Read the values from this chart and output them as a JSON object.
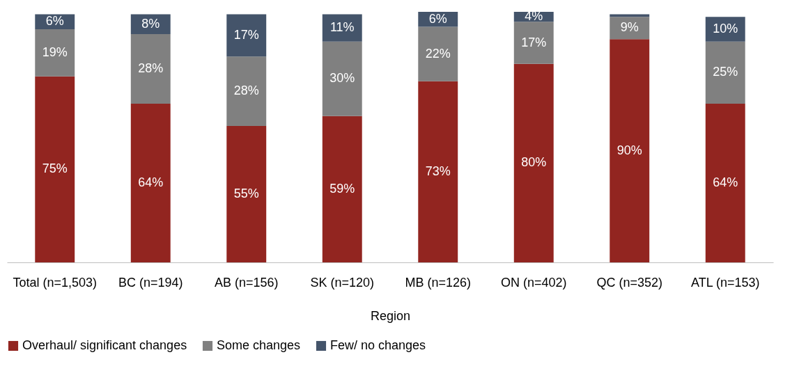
{
  "chart_data": {
    "type": "bar",
    "stacked": true,
    "xlabel": "Region",
    "categories": [
      "Total (n=1,503)",
      "BC (n=194)",
      "AB (n=156)",
      "SK (n=120)",
      "MB (n=126)",
      "ON (n=402)",
      "QC (n=352)",
      "ATL (n=153)"
    ],
    "series": [
      {
        "name": "Overhaul/ significant changes",
        "color": "#922520",
        "values": [
          75,
          64,
          55,
          59,
          73,
          80,
          90,
          64
        ],
        "value_labels": [
          "75%",
          "64%",
          "55%",
          "59%",
          "73%",
          "80%",
          "90%",
          "64%"
        ]
      },
      {
        "name": "Some changes",
        "color": "#808080",
        "values": [
          19,
          28,
          28,
          30,
          22,
          17,
          9,
          25
        ],
        "value_labels": [
          "19%",
          "28%",
          "28%",
          "30%",
          "22%",
          "17%",
          "9%",
          "25%"
        ]
      },
      {
        "name": "Few/ no changes",
        "color": "#44546a",
        "values": [
          6,
          8,
          17,
          11,
          6,
          4,
          1,
          10
        ],
        "value_labels": [
          "6%",
          "8%",
          "17%",
          "11%",
          "6%",
          "4%",
          null,
          "10%"
        ]
      }
    ],
    "legend": "bottom"
  }
}
